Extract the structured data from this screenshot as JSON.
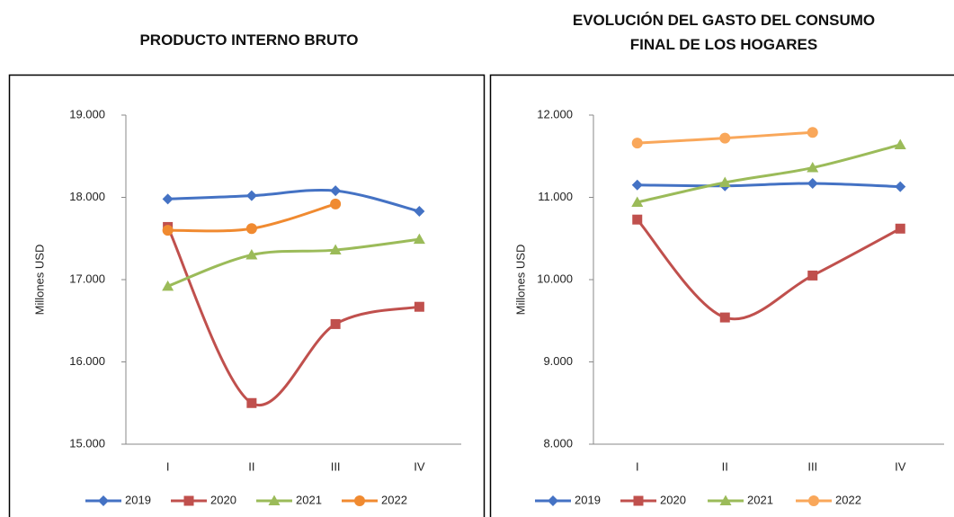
{
  "chart_data": [
    {
      "type": "line",
      "title": "PRODUCTO INTERNO BRUTO",
      "ylabel": "Millones USD",
      "categories": [
        "I",
        "II",
        "III",
        "IV"
      ],
      "ylim": [
        15000,
        19000
      ],
      "yticks": [
        {
          "value": 15000,
          "label": "15.000"
        },
        {
          "value": 16000,
          "label": "16.000"
        },
        {
          "value": 17000,
          "label": "17.000"
        },
        {
          "value": 18000,
          "label": "18.000"
        },
        {
          "value": 19000,
          "label": "19.000"
        }
      ],
      "grid": false,
      "smooth": true,
      "legend": "bottom",
      "series": [
        {
          "name": "2019",
          "color": "#4472c4",
          "marker": "diamond",
          "values": [
            17980,
            18020,
            18080,
            17830
          ]
        },
        {
          "name": "2020",
          "color": "#c0504d",
          "marker": "square",
          "values": [
            17640,
            15500,
            16460,
            16670
          ]
        },
        {
          "name": "2021",
          "color": "#9bbb59",
          "marker": "triangle",
          "values": [
            16920,
            17300,
            17360,
            17490
          ]
        },
        {
          "name": "2022",
          "color": "#f08a30",
          "marker": "circle",
          "values": [
            17600,
            17620,
            17920,
            null
          ]
        }
      ]
    },
    {
      "type": "line",
      "title": "EVOLUCIÓN DEL GASTO DEL CONSUMO FINAL DE LOS HOGARES",
      "ylabel": "Millones USD",
      "categories": [
        "I",
        "II",
        "III",
        "IV"
      ],
      "ylim": [
        8000,
        12000
      ],
      "yticks": [
        {
          "value": 8000,
          "label": "8.000"
        },
        {
          "value": 9000,
          "label": "9.000"
        },
        {
          "value": 10000,
          "label": "10.000"
        },
        {
          "value": 11000,
          "label": "11.000"
        },
        {
          "value": 12000,
          "label": "12.000"
        }
      ],
      "grid": false,
      "smooth": true,
      "legend": "bottom",
      "series": [
        {
          "name": "2019",
          "color": "#4472c4",
          "marker": "diamond",
          "values": [
            11150,
            11140,
            11170,
            11130
          ]
        },
        {
          "name": "2020",
          "color": "#c0504d",
          "marker": "square",
          "values": [
            10730,
            9540,
            10050,
            10620
          ]
        },
        {
          "name": "2021",
          "color": "#9bbb59",
          "marker": "triangle",
          "values": [
            10940,
            11180,
            11360,
            11640
          ]
        },
        {
          "name": "2022",
          "color": "#f9a75a",
          "marker": "circle",
          "values": [
            11660,
            11720,
            11790,
            null
          ]
        }
      ]
    }
  ]
}
